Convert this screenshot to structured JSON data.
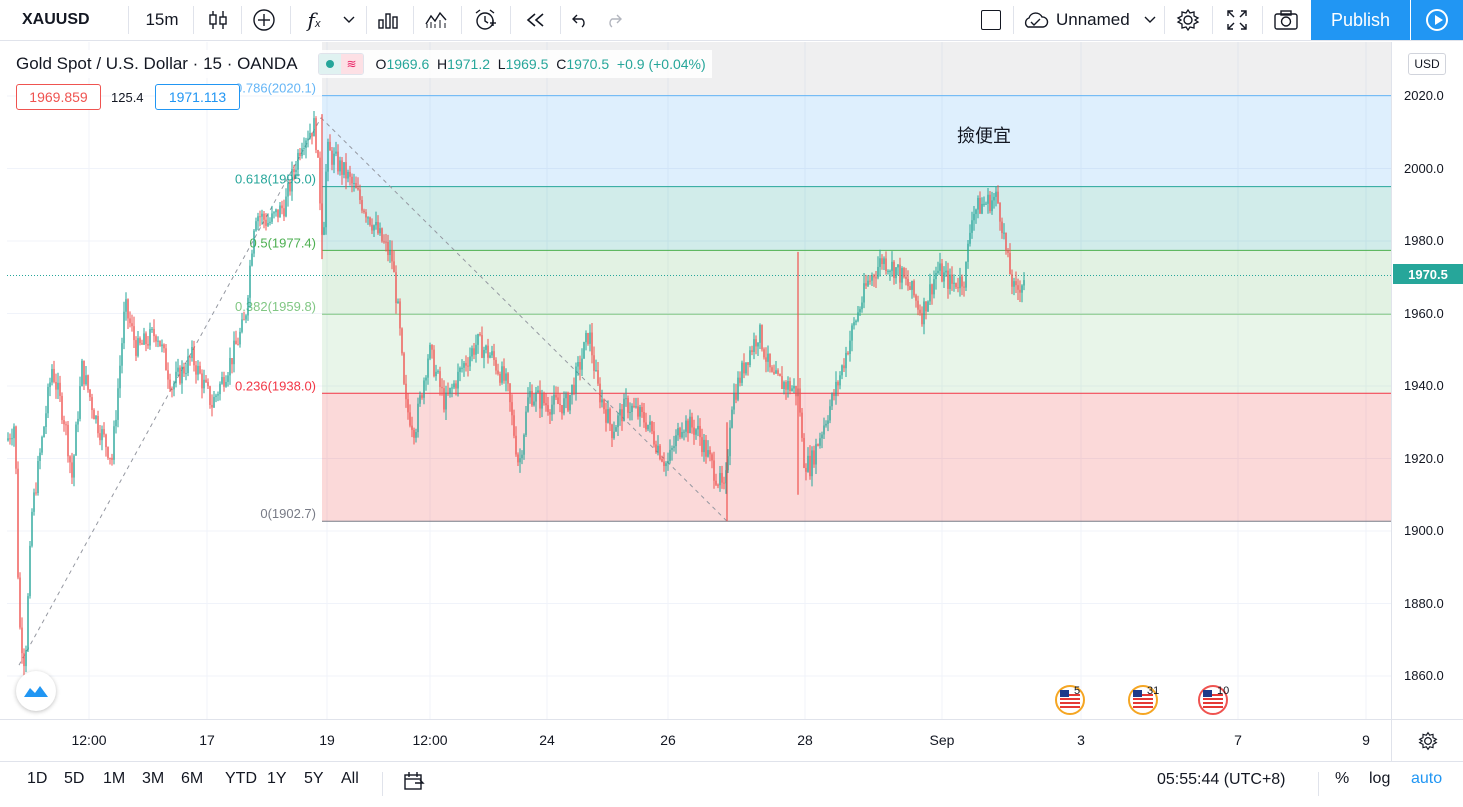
{
  "toolbar": {
    "symbol": "XAUUSD",
    "interval": "15m",
    "layout_name": "Unnamed",
    "publish_label": "Publish"
  },
  "legend": {
    "title": "Gold Spot / U.S. Dollar · 15 · OANDA",
    "open_key": "O",
    "open": "1969.6",
    "high_key": "H",
    "high": "1971.2",
    "low_key": "L",
    "low": "1969.5",
    "close_key": "C",
    "close": "1970.5",
    "change": "+0.9 (+0.04%)",
    "bid": "1969.859",
    "spread": "125.4",
    "ask": "1971.113"
  },
  "price_axis": {
    "currency": "USD",
    "labels": [
      "2020.0",
      "2000.0",
      "1980.0",
      "1960.0",
      "1940.0",
      "1920.0",
      "1900.0",
      "1880.0",
      "1860.0"
    ],
    "current_price": "1970.5"
  },
  "time_axis": {
    "labels": [
      "12:00",
      "17",
      "19",
      "12:00",
      "24",
      "26",
      "28",
      "Sep",
      "3",
      "7",
      "9"
    ]
  },
  "fib": {
    "levels": [
      {
        "label": "0.786(2020.1)",
        "value": 2020.1,
        "color": "#64b5f6"
      },
      {
        "label": "0.618(1995.0)",
        "value": 1995.0,
        "color": "#26a69a"
      },
      {
        "label": "0.5(1977.4)",
        "value": 1977.4,
        "color": "#4caf50"
      },
      {
        "label": "0.382(1959.8)",
        "value": 1959.8,
        "color": "#81c784"
      },
      {
        "label": "0.236(1938.0)",
        "value": 1938.0,
        "color": "#f23645"
      },
      {
        "label": "0(1902.7)",
        "value": 1902.7,
        "color": "#787b86"
      }
    ]
  },
  "annotation": "撿便宜",
  "events": [
    "5",
    "31",
    "10"
  ],
  "bottombar": {
    "ranges": [
      "1D",
      "5D",
      "1M",
      "3M",
      "6M",
      "YTD",
      "1Y",
      "5Y",
      "All"
    ],
    "clock": "05:55:44 (UTC+8)",
    "percent": "%",
    "log": "log",
    "auto": "auto"
  },
  "colors": {
    "up": "#26a69a",
    "down": "#ef5350",
    "accent": "#2196f3"
  }
}
